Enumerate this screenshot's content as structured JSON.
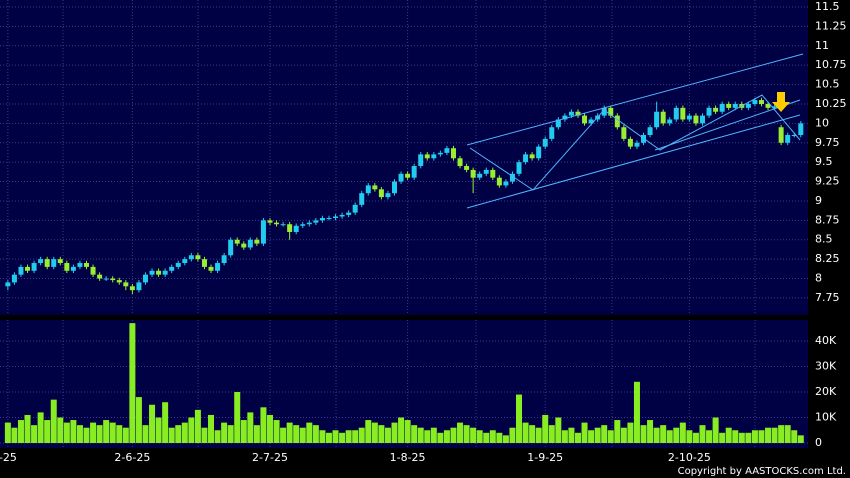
{
  "chart_data": {
    "type": "candlestick",
    "xlim": [
      -1.2,
      122.1
    ],
    "xticks": [
      {
        "value": 0,
        "label": "-25"
      },
      {
        "value": 19,
        "label": "2-6-25"
      },
      {
        "value": 40,
        "label": "2-7-25"
      },
      {
        "value": 61,
        "label": "1-8-25"
      },
      {
        "value": 82,
        "label": "1-9-25"
      },
      {
        "value": 104,
        "label": "2-10-25"
      }
    ],
    "ylim": [
      7.53,
      11.59
    ],
    "yticks": [
      7.75,
      8,
      8.25,
      8.5,
      8.75,
      9,
      9.25,
      9.5,
      9.75,
      10,
      10.25,
      10.5,
      10.75,
      11,
      11.25,
      11.5
    ],
    "up_color": "#22ccee",
    "down_color": "#99ee33",
    "volume_color": "#88ee22",
    "grid": true,
    "candles": [
      [
        7.9,
        7.98,
        7.85,
        7.95
      ],
      [
        7.95,
        8.08,
        7.92,
        8.05
      ],
      [
        8.05,
        8.18,
        8.02,
        8.15
      ],
      [
        8.15,
        8.18,
        8.07,
        8.1
      ],
      [
        8.1,
        8.23,
        8.07,
        8.2
      ],
      [
        8.2,
        8.28,
        8.17,
        8.25
      ],
      [
        8.25,
        8.28,
        8.12,
        8.15
      ],
      [
        8.15,
        8.28,
        8.12,
        8.25
      ],
      [
        8.25,
        8.28,
        8.17,
        8.2
      ],
      [
        8.2,
        8.23,
        8.07,
        8.1
      ],
      [
        8.1,
        8.18,
        8.07,
        8.15
      ],
      [
        8.15,
        8.23,
        8.12,
        8.2
      ],
      [
        8.2,
        8.23,
        8.12,
        8.15
      ],
      [
        8.15,
        8.18,
        8.02,
        8.05
      ],
      [
        8.05,
        8.08,
        7.97,
        8.0
      ],
      [
        8.0,
        8.03,
        7.97,
        8.0
      ],
      [
        8.0,
        8.03,
        7.95,
        7.98
      ],
      [
        7.98,
        8.01,
        7.92,
        7.95
      ],
      [
        7.95,
        7.98,
        7.85,
        7.9
      ],
      [
        7.9,
        7.93,
        7.8,
        7.85
      ],
      [
        7.85,
        7.98,
        7.82,
        7.95
      ],
      [
        7.95,
        8.08,
        7.92,
        8.05
      ],
      [
        8.05,
        8.13,
        8.02,
        8.1
      ],
      [
        8.1,
        8.13,
        8.02,
        8.05
      ],
      [
        8.05,
        8.13,
        8.02,
        8.1
      ],
      [
        8.1,
        8.18,
        8.07,
        8.15
      ],
      [
        8.15,
        8.23,
        8.12,
        8.2
      ],
      [
        8.2,
        8.28,
        8.17,
        8.25
      ],
      [
        8.25,
        8.33,
        8.22,
        8.3
      ],
      [
        8.3,
        8.33,
        8.22,
        8.25
      ],
      [
        8.25,
        8.28,
        8.12,
        8.15
      ],
      [
        8.15,
        8.18,
        8.07,
        8.1
      ],
      [
        8.1,
        8.23,
        8.07,
        8.2
      ],
      [
        8.2,
        8.33,
        8.17,
        8.3
      ],
      [
        8.3,
        8.53,
        8.27,
        8.5
      ],
      [
        8.5,
        8.53,
        8.42,
        8.45
      ],
      [
        8.45,
        8.48,
        8.37,
        8.4
      ],
      [
        8.4,
        8.53,
        8.37,
        8.5
      ],
      [
        8.5,
        8.53,
        8.42,
        8.45
      ],
      [
        8.45,
        8.78,
        8.42,
        8.75
      ],
      [
        8.75,
        8.78,
        8.69,
        8.72
      ],
      [
        8.72,
        8.75,
        8.67,
        8.7
      ],
      [
        8.7,
        8.73,
        8.67,
        8.7
      ],
      [
        8.7,
        8.73,
        8.5,
        8.6
      ],
      [
        8.6,
        8.71,
        8.57,
        8.68
      ],
      [
        8.68,
        8.73,
        8.65,
        8.7
      ],
      [
        8.7,
        8.75,
        8.67,
        8.72
      ],
      [
        8.72,
        8.78,
        8.69,
        8.75
      ],
      [
        8.75,
        8.81,
        8.72,
        8.78
      ],
      [
        8.78,
        8.81,
        8.75,
        8.78
      ],
      [
        8.78,
        8.83,
        8.75,
        8.8
      ],
      [
        8.8,
        8.85,
        8.77,
        8.82
      ],
      [
        8.82,
        8.88,
        8.79,
        8.85
      ],
      [
        8.85,
        8.98,
        8.82,
        8.95
      ],
      [
        8.95,
        9.13,
        8.92,
        9.1
      ],
      [
        9.1,
        9.23,
        9.07,
        9.2
      ],
      [
        9.2,
        9.23,
        9.12,
        9.15
      ],
      [
        9.15,
        9.18,
        9.02,
        9.05
      ],
      [
        9.05,
        9.13,
        9.02,
        9.1
      ],
      [
        9.1,
        9.28,
        9.07,
        9.25
      ],
      [
        9.25,
        9.38,
        9.22,
        9.35
      ],
      [
        9.35,
        9.38,
        9.27,
        9.3
      ],
      [
        9.3,
        9.48,
        9.27,
        9.45
      ],
      [
        9.45,
        9.63,
        9.42,
        9.6
      ],
      [
        9.6,
        9.63,
        9.52,
        9.55
      ],
      [
        9.55,
        9.63,
        9.52,
        9.6
      ],
      [
        9.6,
        9.65,
        9.57,
        9.62
      ],
      [
        9.62,
        9.71,
        9.59,
        9.68
      ],
      [
        9.68,
        9.71,
        9.52,
        9.55
      ],
      [
        9.55,
        9.58,
        9.42,
        9.45
      ],
      [
        9.45,
        9.48,
        9.37,
        9.4
      ],
      [
        9.4,
        9.43,
        9.1,
        9.3
      ],
      [
        9.3,
        9.38,
        9.27,
        9.35
      ],
      [
        9.35,
        9.43,
        9.32,
        9.4
      ],
      [
        9.4,
        9.43,
        9.27,
        9.3
      ],
      [
        9.3,
        9.33,
        9.17,
        9.2
      ],
      [
        9.2,
        9.28,
        9.17,
        9.25
      ],
      [
        9.25,
        9.38,
        9.22,
        9.35
      ],
      [
        9.35,
        9.53,
        9.32,
        9.5
      ],
      [
        9.5,
        9.63,
        9.47,
        9.6
      ],
      [
        9.6,
        9.63,
        9.52,
        9.55
      ],
      [
        9.55,
        9.73,
        9.52,
        9.7
      ],
      [
        9.7,
        9.83,
        9.67,
        9.8
      ],
      [
        9.8,
        9.98,
        9.77,
        9.95
      ],
      [
        9.95,
        10.08,
        9.92,
        10.05
      ],
      [
        10.05,
        10.13,
        10.02,
        10.1
      ],
      [
        10.1,
        10.18,
        10.07,
        10.15
      ],
      [
        10.15,
        10.18,
        10.07,
        10.1
      ],
      [
        10.1,
        10.13,
        9.97,
        10.0
      ],
      [
        10.0,
        10.08,
        9.97,
        10.05
      ],
      [
        10.05,
        10.13,
        10.02,
        10.1
      ],
      [
        10.1,
        10.23,
        10.07,
        10.2
      ],
      [
        10.2,
        10.23,
        10.07,
        10.1
      ],
      [
        10.1,
        10.13,
        9.92,
        9.95
      ],
      [
        9.95,
        9.98,
        9.77,
        9.8
      ],
      [
        9.8,
        9.83,
        9.67,
        9.7
      ],
      [
        9.7,
        9.78,
        9.67,
        9.75
      ],
      [
        9.75,
        9.88,
        9.72,
        9.85
      ],
      [
        9.85,
        9.98,
        9.82,
        9.95
      ],
      [
        9.95,
        10.28,
        9.92,
        10.15
      ],
      [
        10.15,
        10.18,
        9.97,
        10.0
      ],
      [
        10.0,
        10.08,
        9.97,
        10.05
      ],
      [
        10.05,
        10.23,
        10.02,
        10.2
      ],
      [
        10.2,
        10.23,
        10.02,
        10.05
      ],
      [
        10.05,
        10.13,
        10.02,
        10.1
      ],
      [
        10.1,
        10.13,
        9.97,
        10.0
      ],
      [
        10.0,
        10.13,
        9.97,
        10.1
      ],
      [
        10.1,
        10.23,
        10.07,
        10.2
      ],
      [
        10.2,
        10.23,
        10.12,
        10.15
      ],
      [
        10.15,
        10.28,
        10.12,
        10.25
      ],
      [
        10.25,
        10.28,
        10.17,
        10.2
      ],
      [
        10.2,
        10.28,
        10.17,
        10.25
      ],
      [
        10.25,
        10.28,
        10.17,
        10.2
      ],
      [
        10.2,
        10.28,
        10.17,
        10.25
      ],
      [
        10.25,
        10.33,
        10.22,
        10.3
      ],
      [
        10.3,
        10.33,
        10.22,
        10.25
      ],
      [
        10.25,
        10.28,
        10.17,
        10.2
      ],
      [
        10.2,
        10.25,
        10.17,
        10.22
      ],
      [
        9.95,
        9.98,
        9.72,
        9.75
      ],
      [
        9.75,
        9.88,
        9.72,
        9.85
      ],
      [
        9.85,
        9.88,
        9.82,
        9.85
      ],
      [
        9.85,
        10.03,
        9.82,
        10.0
      ]
    ],
    "volume": [
      8000,
      6000,
      9000,
      11000,
      7000,
      12000,
      9000,
      17000,
      10000,
      8000,
      9000,
      7000,
      6000,
      8000,
      7000,
      9000,
      8000,
      7000,
      6000,
      47000,
      18000,
      7000,
      15000,
      10000,
      16000,
      6000,
      7000,
      8000,
      10000,
      13000,
      6000,
      11000,
      5000,
      8000,
      7000,
      20000,
      9000,
      12000,
      7000,
      14000,
      11000,
      9000,
      6000,
      8000,
      7000,
      6000,
      8000,
      7000,
      5000,
      4000,
      5000,
      4000,
      5000,
      5000,
      6000,
      9000,
      8000,
      7000,
      6000,
      8000,
      10000,
      9000,
      7000,
      6000,
      5000,
      6000,
      4000,
      5000,
      6000,
      8000,
      7000,
      6000,
      5000,
      4000,
      5000,
      4000,
      3000,
      6000,
      19000,
      8000,
      7000,
      6000,
      11000,
      7000,
      10000,
      5000,
      6000,
      4000,
      8000,
      5000,
      6000,
      7000,
      5000,
      9000,
      6000,
      8000,
      24000,
      7000,
      9000,
      6000,
      7000,
      5000,
      6000,
      8000,
      5000,
      4000,
      7000,
      5000,
      10000,
      4000,
      6000,
      5000,
      4000,
      4000,
      5000,
      5000,
      6000,
      6000,
      7000,
      7000,
      5000,
      3000
    ],
    "volume_ylim": [
      0,
      48000
    ],
    "volume_yticks": [
      {
        "value": 0,
        "label": "0"
      },
      {
        "value": 10000,
        "label": "10K"
      },
      {
        "value": 20000,
        "label": "20K"
      },
      {
        "value": 30000,
        "label": "30K"
      },
      {
        "value": 40000,
        "label": "40K"
      }
    ],
    "copyright": "Copyright by AASTOCKS.com Ltd."
  }
}
